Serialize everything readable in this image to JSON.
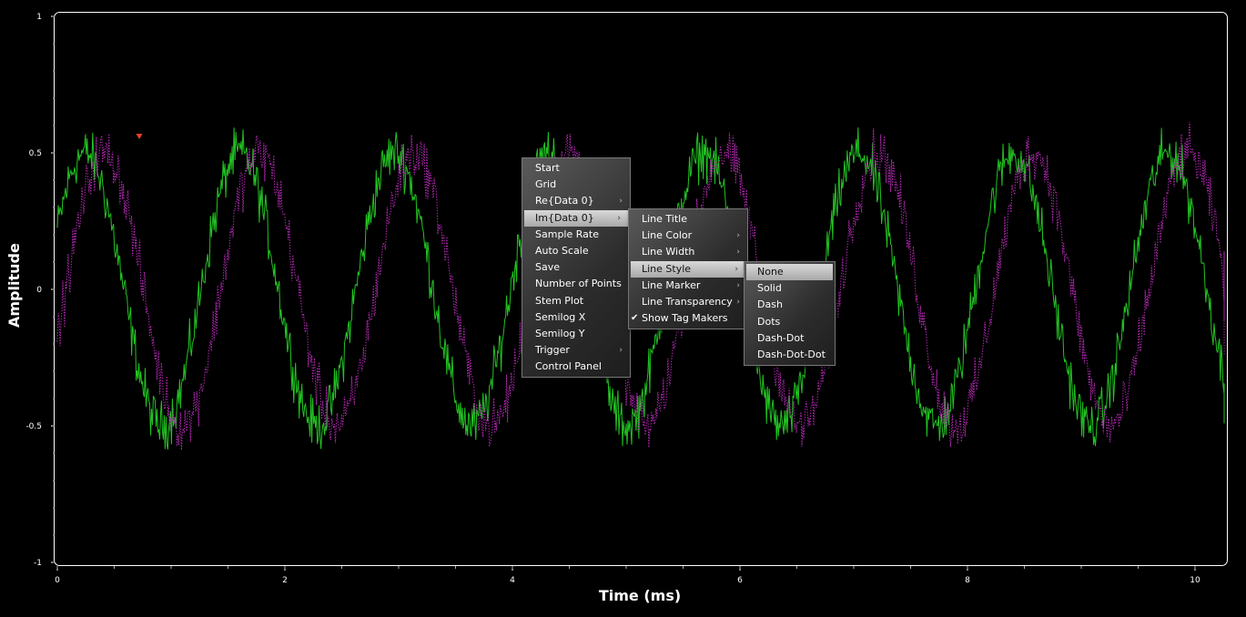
{
  "colors": {
    "background": "#000000",
    "series1": "#22c322",
    "series2": "#b52ab5",
    "marker": "#e8402a",
    "axis": "#ffffff"
  },
  "axes": {
    "xlabel": "Time (ms)",
    "ylabel": "Amplitude",
    "y_ticks": [
      "1",
      "0.5",
      "0",
      "-0.5",
      "-1"
    ],
    "x_ticks": [
      "0",
      "2",
      "4",
      "6",
      "8",
      "10"
    ]
  },
  "chart_data": {
    "type": "line",
    "xlabel": "Time (ms)",
    "ylabel": "Amplitude",
    "xlim": [
      0,
      10.2
    ],
    "ylim": [
      -1,
      1
    ],
    "grid": false,
    "series": [
      {
        "name": "Re{Data 0}",
        "color": "#22c322",
        "style": "solid",
        "frequency_khz": 0.735,
        "amplitude": 0.5,
        "noise": 0.1
      },
      {
        "name": "Im{Data 0}",
        "color": "#b52ab5",
        "style": "dots",
        "frequency_khz": 0.735,
        "amplitude": 0.5,
        "noise": 0.1
      }
    ],
    "tag_marker": {
      "x": 0.72,
      "y": 0.56
    }
  },
  "menu": {
    "items": [
      {
        "label": "Start",
        "submenu": false
      },
      {
        "label": "Grid",
        "submenu": false
      },
      {
        "label": "Re{Data 0}",
        "submenu": true
      },
      {
        "label": "Im{Data 0}",
        "submenu": true,
        "active": true
      },
      {
        "label": "Sample Rate",
        "submenu": false
      },
      {
        "label": "Auto Scale",
        "submenu": false
      },
      {
        "label": "Save",
        "submenu": false
      },
      {
        "label": "Number of Points",
        "submenu": false
      },
      {
        "label": "Stem Plot",
        "submenu": false
      },
      {
        "label": "Semilog X",
        "submenu": false
      },
      {
        "label": "Semilog Y",
        "submenu": false
      },
      {
        "label": "Trigger",
        "submenu": true
      },
      {
        "label": "Control Panel",
        "submenu": false
      }
    ]
  },
  "submenu": {
    "items": [
      {
        "label": "Line Title",
        "submenu": false
      },
      {
        "label": "Line Color",
        "submenu": true
      },
      {
        "label": "Line Width",
        "submenu": true
      },
      {
        "label": "Line Style",
        "submenu": true,
        "active": true
      },
      {
        "label": "Line Marker",
        "submenu": true
      },
      {
        "label": "Line Transparency",
        "submenu": true
      },
      {
        "label": "Show Tag Makers",
        "submenu": false,
        "checked": true
      }
    ]
  },
  "style_menu": {
    "items": [
      {
        "label": "None",
        "active": true
      },
      {
        "label": "Solid"
      },
      {
        "label": "Dash"
      },
      {
        "label": "Dots"
      },
      {
        "label": "Dash-Dot"
      },
      {
        "label": "Dash-Dot-Dot"
      }
    ]
  }
}
